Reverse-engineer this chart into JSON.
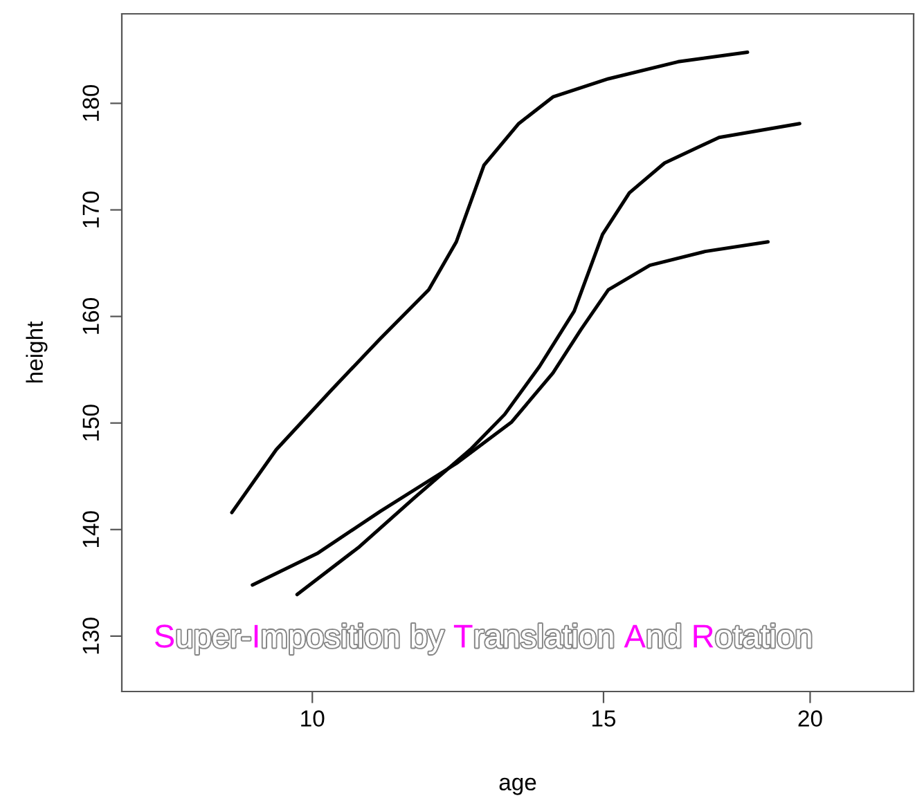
{
  "chart_data": {
    "type": "line",
    "xlabel": "age",
    "ylabel": "height",
    "log": "x",
    "xlim": [
      7.67,
      23.1
    ],
    "ylim": [
      124.8,
      188.4
    ],
    "xticks": [
      10,
      15,
      20
    ],
    "yticks": [
      130,
      140,
      150,
      160,
      170,
      180
    ],
    "grid": false,
    "legend": false,
    "marker": "none",
    "line_style": "solid",
    "annotations": [
      "Super-Imposition by Translation And Rotation"
    ],
    "series": [
      {
        "color": "#000000",
        "x": [
          8.94,
          9.51,
          10.27,
          10.99,
          11.76,
          12.22,
          12.7,
          13.33,
          13.98,
          15.1,
          16.64,
          18.33
        ],
        "values": [
          141.6,
          147.5,
          153.1,
          157.9,
          162.5,
          167.0,
          174.2,
          178.1,
          180.6,
          182.3,
          183.9,
          184.8
        ]
      },
      {
        "color": "#000000",
        "x": [
          9.2,
          10.08,
          10.99,
          12.22,
          13.2,
          13.98,
          14.54,
          15.1,
          16.0,
          17.28,
          18.86
        ],
        "values": [
          134.8,
          137.8,
          141.7,
          146.2,
          150.1,
          154.7,
          158.8,
          162.5,
          164.8,
          166.1,
          167.0
        ]
      },
      {
        "color": "#000000",
        "x": [
          9.79,
          10.68,
          11.53,
          12.46,
          13.07,
          13.72,
          14.4,
          14.98,
          15.55,
          16.33,
          17.62,
          19.71
        ],
        "values": [
          133.9,
          138.4,
          143.0,
          147.5,
          150.8,
          155.3,
          160.5,
          167.7,
          171.6,
          174.4,
          176.8,
          178.1
        ]
      }
    ]
  }
}
